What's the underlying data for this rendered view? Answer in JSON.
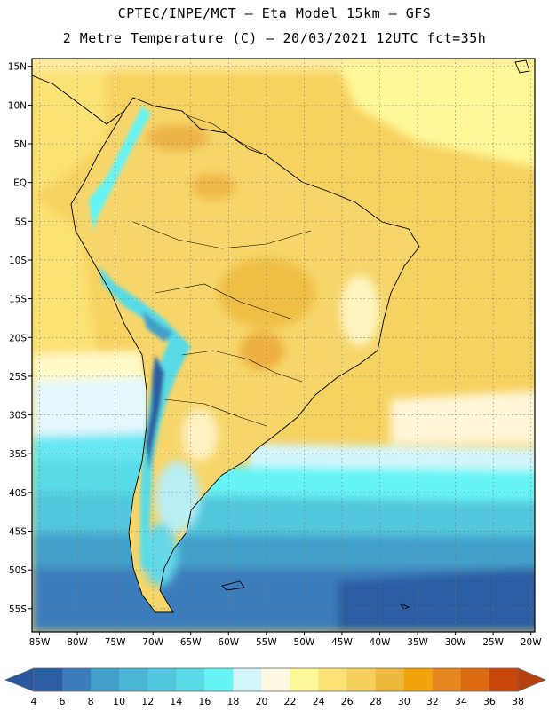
{
  "header": {
    "line1": "CPTEC/INPE/MCT –  Eta Model 15km – GFS",
    "line2": "2 Metre Temperature (C) – 20/03/2021 12UTC fct=35h"
  },
  "map": {
    "lon_range": [
      -86,
      -19.5
    ],
    "lat_range": [
      -58,
      16
    ],
    "lat_ticks": [
      {
        "value": 15,
        "label": "15N"
      },
      {
        "value": 10,
        "label": "10N"
      },
      {
        "value": 5,
        "label": "5N"
      },
      {
        "value": 0,
        "label": "EQ"
      },
      {
        "value": -5,
        "label": "5S"
      },
      {
        "value": -10,
        "label": "10S"
      },
      {
        "value": -15,
        "label": "15S"
      },
      {
        "value": -20,
        "label": "20S"
      },
      {
        "value": -25,
        "label": "25S"
      },
      {
        "value": -30,
        "label": "30S"
      },
      {
        "value": -35,
        "label": "35S"
      },
      {
        "value": -40,
        "label": "40S"
      },
      {
        "value": -45,
        "label": "45S"
      },
      {
        "value": -50,
        "label": "50S"
      },
      {
        "value": -55,
        "label": "55S"
      }
    ],
    "lon_ticks": [
      {
        "value": -85,
        "label": "85W"
      },
      {
        "value": -80,
        "label": "80W"
      },
      {
        "value": -75,
        "label": "75W"
      },
      {
        "value": -70,
        "label": "70W"
      },
      {
        "value": -65,
        "label": "65W"
      },
      {
        "value": -60,
        "label": "60W"
      },
      {
        "value": -55,
        "label": "55W"
      },
      {
        "value": -50,
        "label": "50W"
      },
      {
        "value": -45,
        "label": "45W"
      },
      {
        "value": -40,
        "label": "40W"
      },
      {
        "value": -35,
        "label": "35W"
      },
      {
        "value": -30,
        "label": "30W"
      },
      {
        "value": -25,
        "label": "25W"
      },
      {
        "value": -20,
        "label": "20W"
      }
    ],
    "grid": true
  },
  "colorbar": {
    "labels": [
      "4",
      "6",
      "8",
      "10",
      "12",
      "14",
      "16",
      "18",
      "20",
      "22",
      "24",
      "26",
      "28",
      "30",
      "32",
      "34",
      "36",
      "38"
    ],
    "colors": [
      "#2b5da2",
      "#3a7dba",
      "#43a0cb",
      "#4bb6d6",
      "#52c7dd",
      "#59dbe6",
      "#66f4f5",
      "#d3f6fb",
      "#fff9e3",
      "#fff898",
      "#fbe274",
      "#f5cf5e",
      "#eeba3e",
      "#f0a30a",
      "#e6871f",
      "#db6b10",
      "#c9460a"
    ],
    "low_color": "#2858a0",
    "high_color": "#b8400c"
  }
}
